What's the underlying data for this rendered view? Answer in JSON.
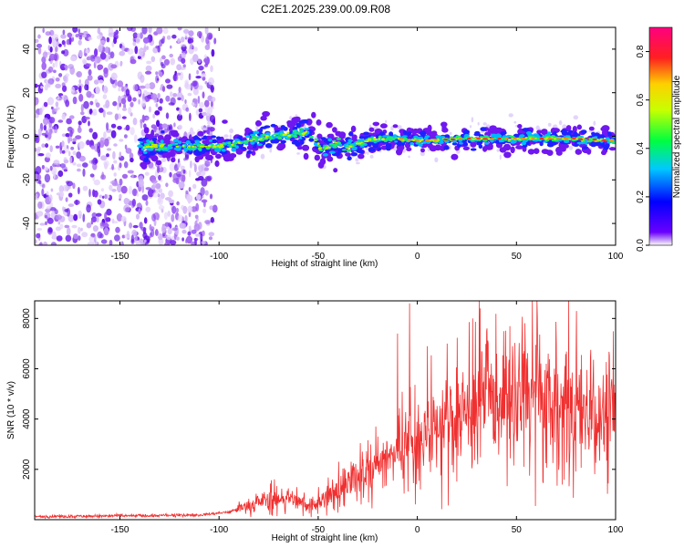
{
  "title": "C2E1.2025.239.00.09.R08",
  "colors": {
    "snr_line": "#f03030",
    "noise_scatter": "#7a2cf0",
    "axis": "#000000"
  },
  "chart_data": [
    {
      "type": "heatmap",
      "name": "spectrogram",
      "title": "C2E1.2025.239.00.09.R08",
      "xlabel": "Height of straight line (km)",
      "ylabel": "Frequency (Hz)",
      "xlim": [
        -193,
        100
      ],
      "ylim": [
        -50,
        50
      ],
      "xticks": [
        -150,
        -100,
        -50,
        0,
        50,
        100
      ],
      "xtick_labels": [
        "-150",
        "-100",
        "-50",
        "0",
        "50",
        "100"
      ],
      "yticks": [
        40,
        20,
        0,
        -20,
        -40
      ],
      "ytick_labels": [
        "40",
        "20",
        "0",
        "-20",
        "-40"
      ],
      "noise_region_km": [
        -193,
        -105
      ],
      "signal_start_km": -140,
      "ridge": [
        {
          "x": -140,
          "y": -4.5
        },
        {
          "x": -120,
          "y": -4.5
        },
        {
          "x": -105,
          "y": -5
        },
        {
          "x": -95,
          "y": -4
        },
        {
          "x": -80,
          "y": -1
        },
        {
          "x": -65,
          "y": 1
        },
        {
          "x": -55,
          "y": 2
        },
        {
          "x": -48,
          "y": -6
        },
        {
          "x": -40,
          "y": -3
        },
        {
          "x": -35,
          "y": -5
        },
        {
          "x": -25,
          "y": -2
        },
        {
          "x": -15,
          "y": -1
        },
        {
          "x": 0,
          "y": -2
        },
        {
          "x": 25,
          "y": -1
        },
        {
          "x": 50,
          "y": -1
        },
        {
          "x": 75,
          "y": -1
        },
        {
          "x": 100,
          "y": -2
        }
      ],
      "colorbar": {
        "label": "Normalized spectral amplitude",
        "range": [
          0.0,
          0.9
        ],
        "ticks": [
          0.0,
          0.2,
          0.4,
          0.6,
          0.8
        ],
        "tick_labels": [
          "0.0",
          "0.2",
          "0.4",
          "0.6",
          "0.8"
        ],
        "colormap": "rainbow"
      }
    },
    {
      "type": "line",
      "name": "snr",
      "xlabel": "Height of straight line (km)",
      "ylabel": "SNR (10 * v/v)",
      "xlim": [
        -193,
        100
      ],
      "ylim": [
        0,
        8700
      ],
      "xticks": [
        -150,
        -100,
        -50,
        0,
        50,
        100
      ],
      "xtick_labels": [
        "-150",
        "-100",
        "-50",
        "0",
        "50",
        "100"
      ],
      "yticks": [
        2000,
        4000,
        6000,
        8000
      ],
      "ytick_labels": [
        "2000",
        "4000",
        "6000",
        "8000"
      ],
      "trend": [
        {
          "x": -193,
          "y": 120
        },
        {
          "x": -150,
          "y": 150
        },
        {
          "x": -110,
          "y": 180
        },
        {
          "x": -95,
          "y": 300
        },
        {
          "x": -80,
          "y": 750
        },
        {
          "x": -65,
          "y": 900
        },
        {
          "x": -55,
          "y": 550
        },
        {
          "x": -45,
          "y": 900
        },
        {
          "x": -35,
          "y": 1400
        },
        {
          "x": -25,
          "y": 1900
        },
        {
          "x": -10,
          "y": 2600
        },
        {
          "x": 0,
          "y": 3000
        },
        {
          "x": 10,
          "y": 3600
        },
        {
          "x": 20,
          "y": 4200
        },
        {
          "x": 30,
          "y": 4600
        },
        {
          "x": 40,
          "y": 4700
        },
        {
          "x": 50,
          "y": 4800
        },
        {
          "x": 60,
          "y": 4700
        },
        {
          "x": 70,
          "y": 4500
        },
        {
          "x": 80,
          "y": 4400
        },
        {
          "x": 90,
          "y": 4300
        },
        {
          "x": 100,
          "y": 4200
        }
      ],
      "spikes": [
        {
          "x": -10,
          "y": 7400
        },
        {
          "x": -4,
          "y": 8600
        },
        {
          "x": 5,
          "y": 6900
        },
        {
          "x": 15,
          "y": 7000
        },
        {
          "x": 28,
          "y": 8000
        },
        {
          "x": 35,
          "y": 7500
        },
        {
          "x": 45,
          "y": 6500
        },
        {
          "x": 55,
          "y": 6400
        },
        {
          "x": 65,
          "y": 6200
        }
      ]
    }
  ]
}
